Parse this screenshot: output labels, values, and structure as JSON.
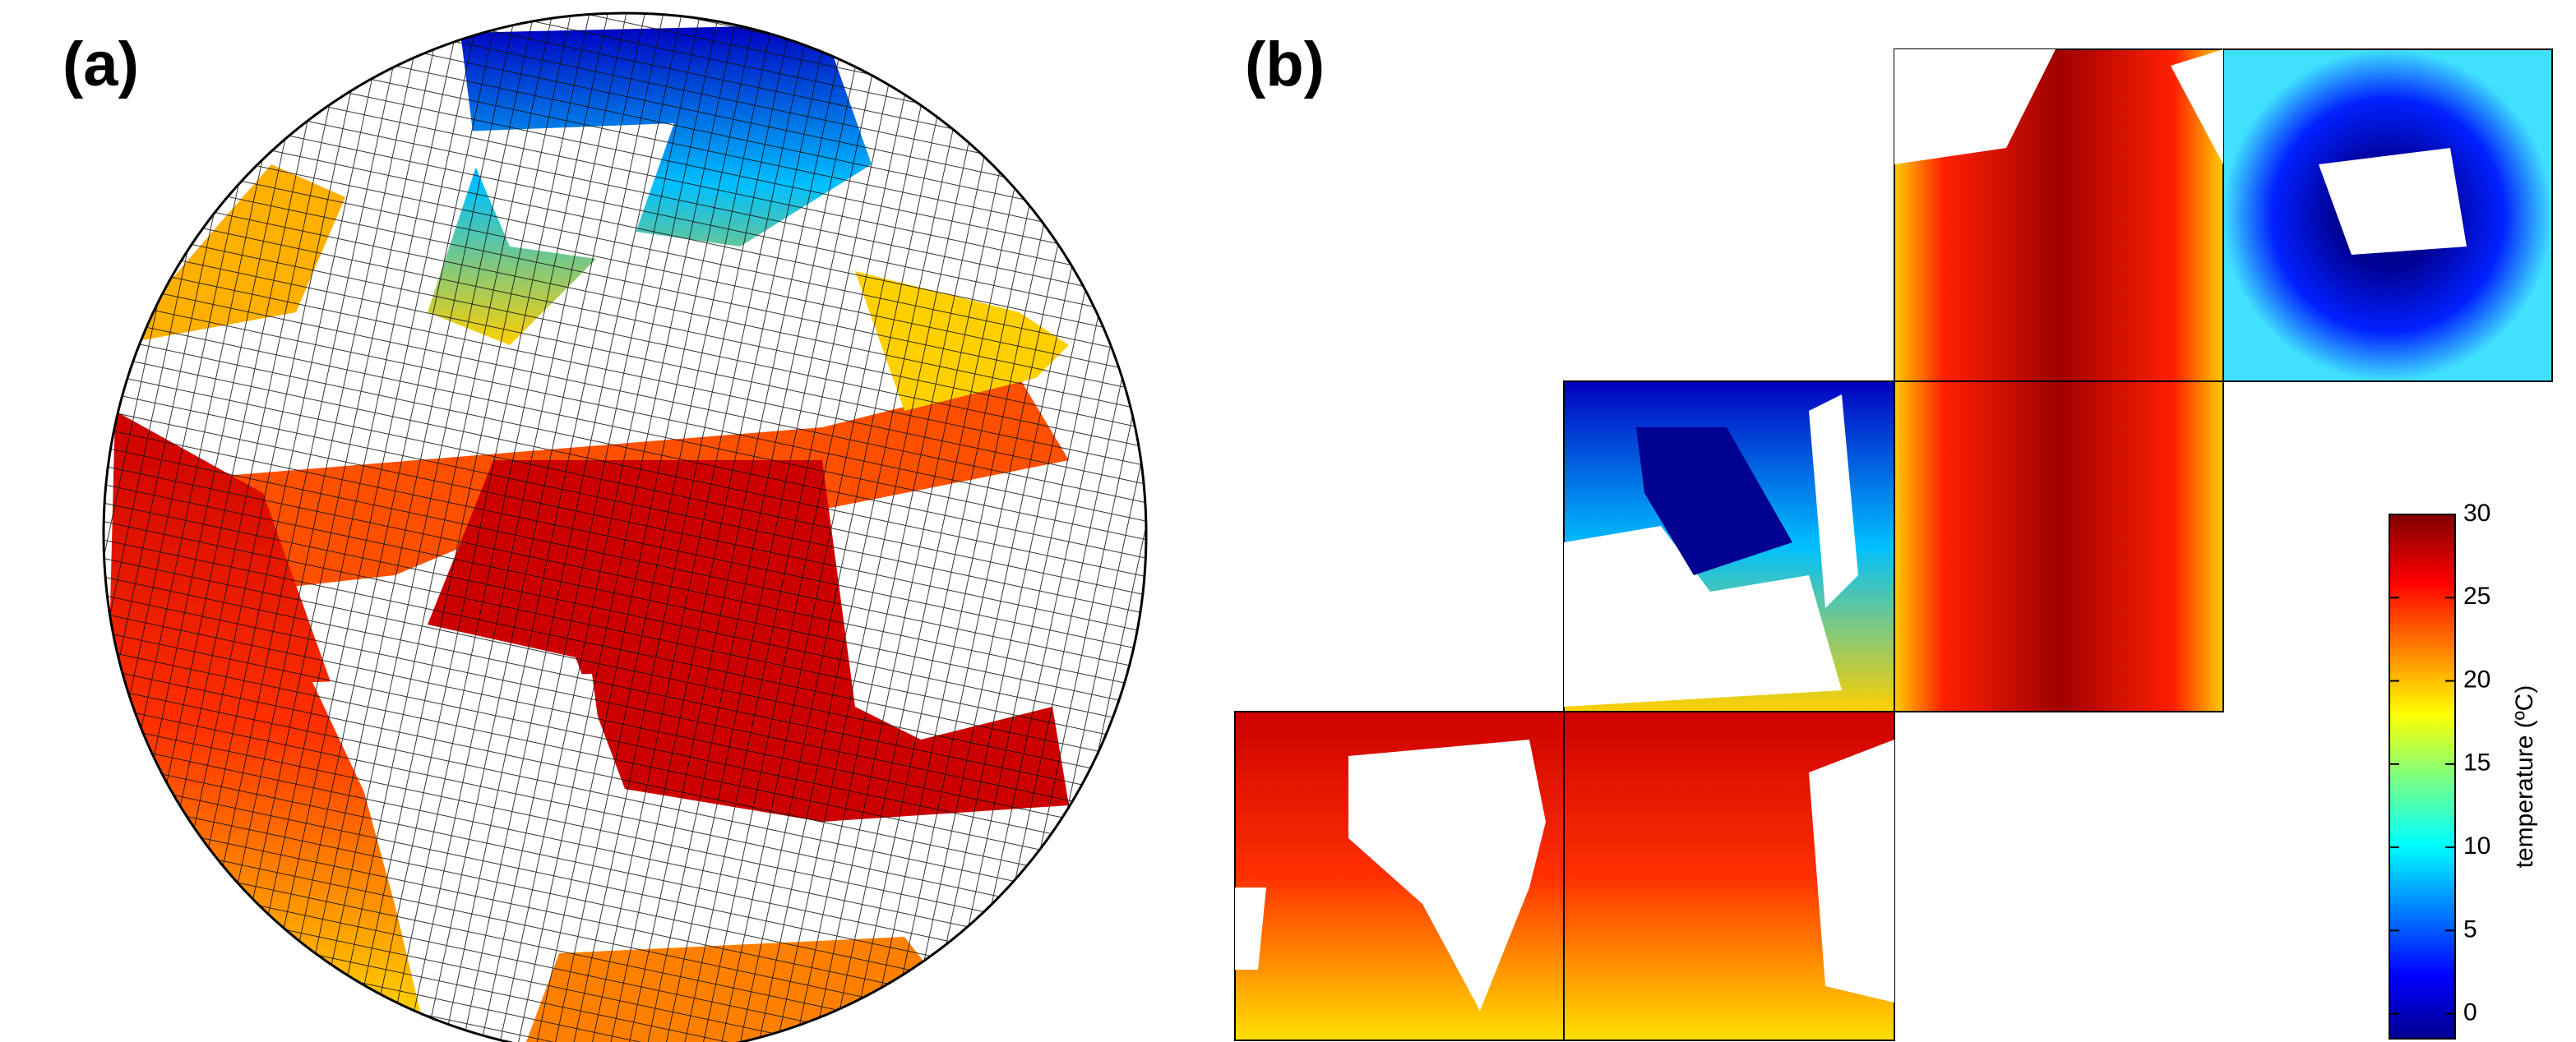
{
  "panel_labels": [
    "(a)",
    "(b)"
  ],
  "colorbar": {
    "label": "temperature (ºC)",
    "lim": [
      -1.5,
      30
    ],
    "ticks": [
      0,
      5,
      10,
      15,
      20,
      25,
      30
    ]
  }
}
